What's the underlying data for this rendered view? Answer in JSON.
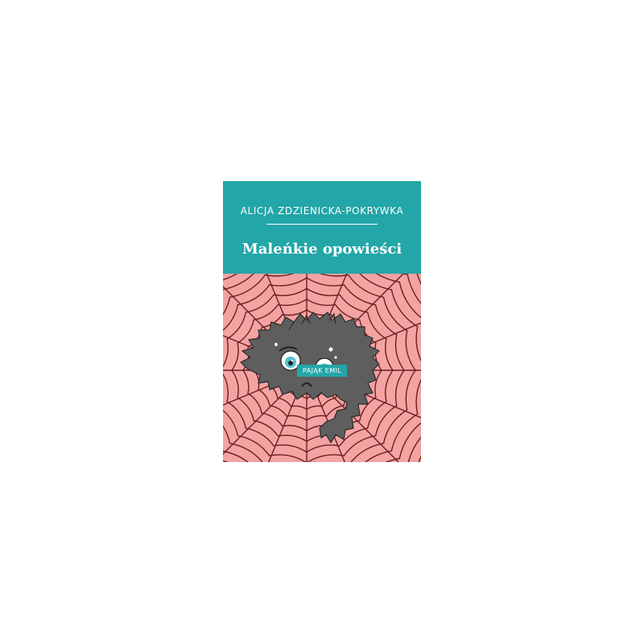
{
  "book": {
    "author": "ALICJA ZDZIENICKA-POKRYWKA",
    "title": "Maleńkie opowieści",
    "subtitle": "PAJĄK EMIL"
  },
  "illustration": {
    "subject": "spider-on-web",
    "colors": {
      "top_band": "#23a6a7",
      "background": "#f2a3a2",
      "web": "#6b1f1f",
      "spider": "#5e5e5e",
      "eye_iris": "#4fc3d4"
    }
  }
}
